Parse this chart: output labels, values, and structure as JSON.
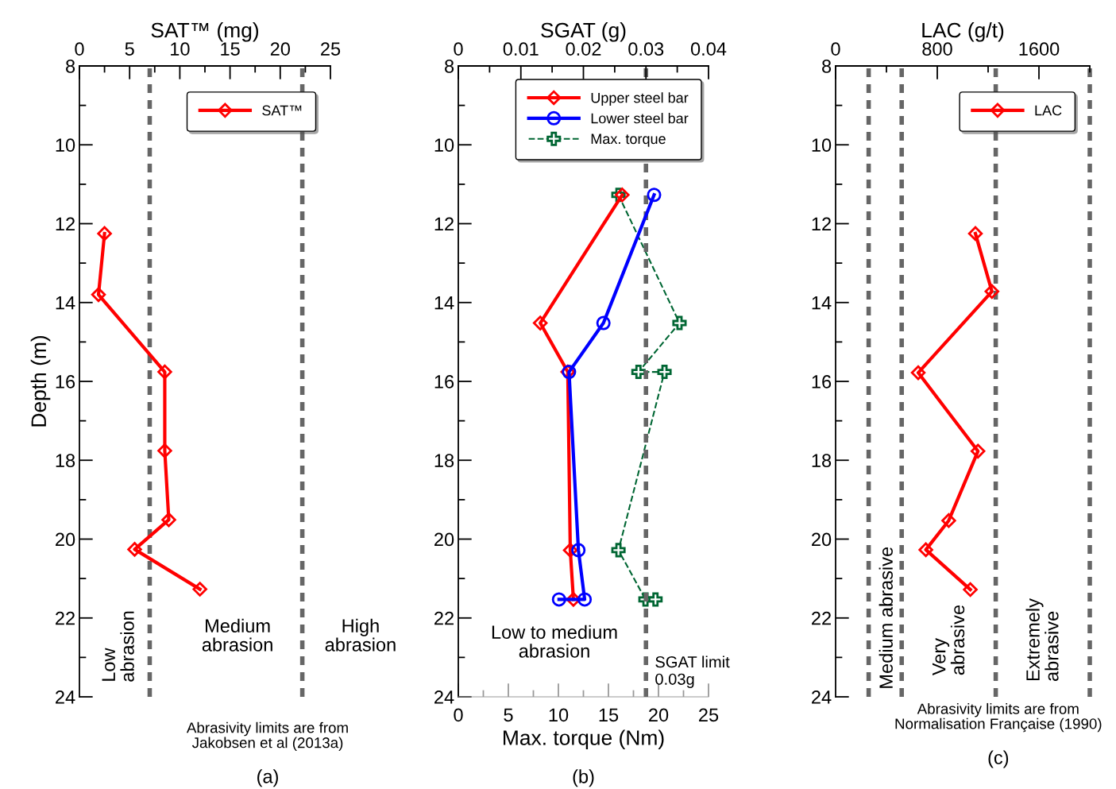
{
  "chart_data": [
    {
      "type": "line",
      "xlabel": "SAT™ (mg)",
      "ylabel": "Depth (m)",
      "xlim": [
        0,
        25
      ],
      "xticks": [
        0,
        {
          "value": 2.5,
          "label": null
        },
        5,
        {
          "value": 7.5,
          "label": null
        },
        10,
        {
          "value": 12.5,
          "label": null
        },
        15,
        {
          "value": 17.5,
          "label": null
        },
        20,
        {
          "value": 22.5,
          "label": null
        },
        25
      ],
      "ylim": [
        24,
        8
      ],
      "yticks": [
        8,
        {
          "value": 9,
          "label": null
        },
        10,
        {
          "value": 11,
          "label": null
        },
        12,
        {
          "value": 13,
          "label": null
        },
        14,
        {
          "value": 15,
          "label": null
        },
        16,
        {
          "value": 17,
          "label": null
        },
        18,
        {
          "value": 19,
          "label": null
        },
        20,
        {
          "value": 21,
          "label": null
        },
        22,
        {
          "value": 23,
          "label": null
        },
        24
      ],
      "series": [
        {
          "name": "SAT™",
          "color": "#ff0000",
          "marker": "diamond",
          "line_style": "solid",
          "x": [
            2.5,
            1.9,
            8.5,
            8.5,
            8.9,
            5.5,
            12.0
          ],
          "values": [
            12.25,
            13.8,
            15.76,
            17.76,
            19.51,
            20.26,
            21.27
          ]
        }
      ],
      "ref_lines": [
        {
          "axis": "x",
          "value": 7,
          "color": "#666666",
          "line_style": "dashed"
        },
        {
          "axis": "x",
          "value": 22.2,
          "color": "#666666",
          "line_style": "dashed"
        }
      ],
      "annotations": [
        "Low\nabrasion",
        "Medium\nabrasion",
        "High\nabrasion",
        "Abrasivity limits are from\nJakobsen et al (2013a)",
        "(a)"
      ],
      "legend": "top right",
      "grid": false
    },
    {
      "type": "line",
      "xlabel": "Max. torque (Nm)",
      "x2label": "SGAT (g)",
      "xlim": [
        0,
        25
      ],
      "xticks": [
        0,
        {
          "value": 2.5,
          "label": null
        },
        5,
        {
          "value": 7.5,
          "label": null
        },
        10,
        {
          "value": 12.5,
          "label": null
        },
        15,
        {
          "value": 17.5,
          "label": null
        },
        20,
        {
          "value": 22.5,
          "label": null
        },
        25
      ],
      "x2lim": [
        0,
        0.04
      ],
      "x2ticks": [
        0,
        {
          "value": 0.005,
          "label": null
        },
        0.01,
        {
          "value": 0.015,
          "label": null
        },
        0.02,
        {
          "value": 0.025,
          "label": null
        },
        0.03,
        {
          "value": 0.035,
          "label": null
        },
        0.04
      ],
      "ylim": [
        24,
        8
      ],
      "yticks": [
        8,
        {
          "value": 9,
          "label": null
        },
        10,
        {
          "value": 11,
          "label": null
        },
        12,
        {
          "value": 13,
          "label": null
        },
        14,
        {
          "value": 15,
          "label": null
        },
        16,
        {
          "value": 17,
          "label": null
        },
        18,
        {
          "value": 19,
          "label": null
        },
        20,
        {
          "value": 21,
          "label": null
        },
        22,
        {
          "value": 23,
          "label": null
        },
        24
      ],
      "series": [
        {
          "name": "Upper steel bar",
          "axis": "x2",
          "color": "#ff0000",
          "marker": "diamond",
          "line_style": "solid",
          "x": [
            0.0262,
            0.0131,
            0.0175,
            0.0179,
            0.0184
          ],
          "values": [
            11.27,
            14.52,
            15.76,
            20.28,
            21.53
          ]
        },
        {
          "name": "Lower steel bar",
          "axis": "x2",
          "color": "#0000ff",
          "marker": "circle",
          "line_style": "solid",
          "x": [
            0.0313,
            0.0232,
            0.0177,
            0.0192,
            0.0202,
            0.0161
          ],
          "values": [
            11.27,
            14.52,
            15.76,
            20.28,
            21.53,
            21.53
          ]
        },
        {
          "name": "Max. torque",
          "color": "#006633",
          "marker": "cross",
          "line_style": "dashed",
          "x": [
            16.0,
            22.1,
            18.0,
            20.6,
            16.0,
            18.7,
            19.7
          ],
          "values": [
            11.27,
            14.52,
            15.76,
            15.76,
            20.28,
            21.53,
            21.53
          ]
        }
      ],
      "ref_lines": [
        {
          "axis": "x2",
          "value": 0.03,
          "label": "SGAT limit\n0.03g",
          "color": "#666666",
          "line_style": "dashed"
        }
      ],
      "annotations": [
        "Low to medium\nabrasion",
        "(b)"
      ],
      "legend": "top right",
      "grid": false
    },
    {
      "type": "line",
      "xlabel": "LAC (g/t)",
      "xlim": [
        0,
        2000
      ],
      "xticks": [
        0,
        {
          "value": 400,
          "label": null
        },
        800,
        {
          "value": 1200,
          "label": null
        },
        1600,
        {
          "value": 2000,
          "label": null
        }
      ],
      "ylim": [
        24,
        8
      ],
      "yticks": [
        8,
        {
          "value": 9,
          "label": null
        },
        10,
        {
          "value": 11,
          "label": null
        },
        12,
        {
          "value": 13,
          "label": null
        },
        14,
        {
          "value": 15,
          "label": null
        },
        16,
        {
          "value": 17,
          "label": null
        },
        18,
        {
          "value": 19,
          "label": null
        },
        20,
        {
          "value": 21,
          "label": null
        },
        22,
        {
          "value": 23,
          "label": null
        },
        24
      ],
      "series": [
        {
          "name": "LAC",
          "color": "#ff0000",
          "marker": "diamond",
          "line_style": "solid",
          "x": [
            1100,
            1230,
            650,
            1120,
            890,
            710,
            1060
          ],
          "values": [
            12.25,
            13.72,
            15.78,
            17.77,
            19.53,
            20.27,
            21.28
          ]
        }
      ],
      "ref_lines": [
        {
          "axis": "x",
          "value": 260,
          "color": "#666666",
          "line_style": "dashed"
        },
        {
          "axis": "x",
          "value": 520,
          "color": "#666666",
          "line_style": "dashed"
        },
        {
          "axis": "x",
          "value": 1260,
          "color": "#666666",
          "line_style": "dashed"
        },
        {
          "axis": "x",
          "value": 2000,
          "color": "#666666",
          "line_style": "dashed"
        }
      ],
      "annotations": [
        "Medium abrasive",
        "Very\nabrasive",
        "Extremely\nabrasive",
        "Abrasivity limits are from\nNormalisation Française (1990)",
        "(c)"
      ],
      "legend": "top right",
      "grid": false
    }
  ]
}
